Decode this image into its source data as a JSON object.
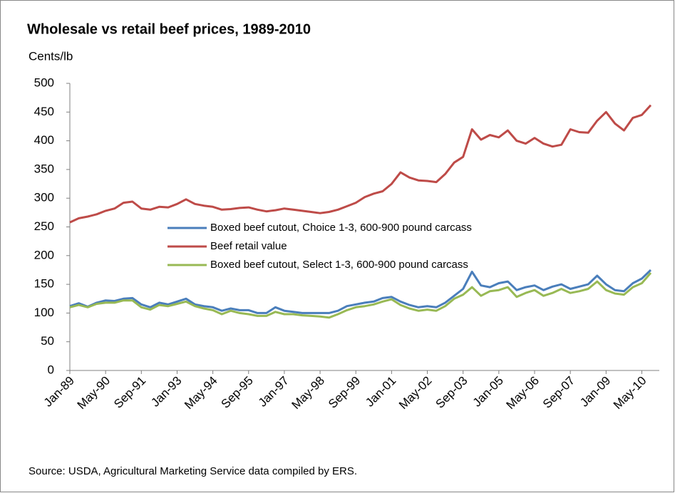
{
  "chart_data": {
    "type": "line",
    "title": "Wholesale vs retail beef prices, 1989-2010",
    "y_label": "Cents/lb",
    "source": "Source: USDA, Agricultural Marketing Service data compiled by ERS.",
    "categories": [
      "Jan-89",
      null,
      null,
      null,
      "May-90",
      null,
      null,
      null,
      "Sep-91",
      null,
      null,
      null,
      "Jan-93",
      null,
      null,
      null,
      "May-94",
      null,
      null,
      null,
      "Sep-95",
      null,
      null,
      null,
      "Jan-97",
      null,
      null,
      null,
      "May-98",
      null,
      null,
      null,
      "Sep-99",
      null,
      null,
      null,
      "Jan-01",
      null,
      null,
      null,
      "May-02",
      null,
      null,
      null,
      "Sep-03",
      null,
      null,
      null,
      "Jan-05",
      null,
      null,
      null,
      "May-06",
      null,
      null,
      null,
      "Sep-07",
      null,
      null,
      null,
      "Jan-09",
      null,
      null,
      null,
      "May-10",
      null
    ],
    "series": [
      {
        "name": "Boxed beef cutout, Choice 1-3, 600-900 pound carcass",
        "color": "#4a7ebb",
        "values": [
          112,
          117,
          111,
          118,
          122,
          121,
          125,
          126,
          115,
          110,
          118,
          115,
          120,
          125,
          115,
          112,
          110,
          104,
          108,
          105,
          105,
          100,
          100,
          110,
          104,
          102,
          100,
          100,
          100,
          100,
          104,
          112,
          115,
          118,
          120,
          126,
          128,
          120,
          114,
          110,
          112,
          110,
          118,
          130,
          142,
          172,
          148,
          145,
          152,
          155,
          140,
          145,
          148,
          140,
          146,
          150,
          142,
          146,
          150,
          165,
          150,
          140,
          138,
          152,
          160,
          175
        ]
      },
      {
        "name": "Beef retail value",
        "color": "#be4b48",
        "values": [
          258,
          265,
          268,
          272,
          278,
          282,
          292,
          294,
          282,
          280,
          285,
          284,
          290,
          298,
          290,
          287,
          285,
          280,
          281,
          283,
          284,
          280,
          277,
          279,
          282,
          280,
          278,
          276,
          274,
          276,
          280,
          286,
          292,
          302,
          308,
          312,
          325,
          345,
          336,
          331,
          330,
          328,
          342,
          362,
          372,
          420,
          402,
          410,
          406,
          418,
          400,
          395,
          405,
          395,
          390,
          393,
          420,
          415,
          414,
          435,
          450,
          430,
          418,
          440,
          445,
          462
        ]
      },
      {
        "name": "Boxed beef cutout, Select 1-3, 600-900 pound carcass",
        "color": "#98b954",
        "values": [
          110,
          114,
          110,
          116,
          118,
          118,
          122,
          122,
          110,
          106,
          114,
          112,
          116,
          120,
          112,
          108,
          105,
          98,
          104,
          100,
          98,
          95,
          95,
          102,
          98,
          98,
          96,
          95,
          94,
          92,
          98,
          105,
          110,
          112,
          115,
          120,
          124,
          114,
          108,
          104,
          106,
          104,
          112,
          125,
          132,
          145,
          130,
          138,
          140,
          145,
          128,
          135,
          140,
          130,
          135,
          142,
          135,
          138,
          142,
          155,
          140,
          134,
          132,
          145,
          152,
          170
        ]
      }
    ],
    "ylim": [
      0,
      500
    ],
    "yticks": [
      0,
      50,
      100,
      150,
      200,
      250,
      300,
      350,
      400,
      450,
      500
    ],
    "legend": "center",
    "grid": false
  }
}
